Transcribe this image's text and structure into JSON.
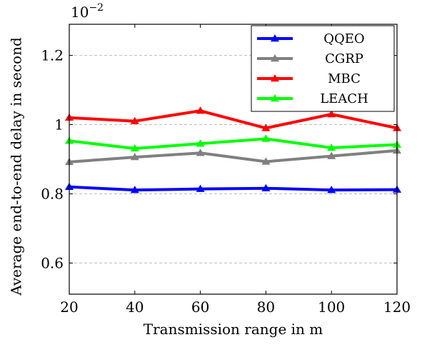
{
  "chart_data": {
    "type": "line",
    "xlabel": "Transmission range in m",
    "ylabel": "Average end-to-end delay in second",
    "scale_base": "10",
    "scale_exponent": "−2",
    "x": [
      20,
      40,
      60,
      80,
      100,
      120
    ],
    "xlim": [
      20,
      120
    ],
    "ylim": [
      0.51,
      1.29
    ],
    "xticks": [
      "20",
      "40",
      "60",
      "80",
      "100",
      "120"
    ],
    "yticks": [
      {
        "value": 0.6,
        "label": "0.6"
      },
      {
        "value": 0.8,
        "label": "0.8"
      },
      {
        "value": 1.0,
        "label": "1"
      },
      {
        "value": 1.2,
        "label": "1.2"
      }
    ],
    "grid": "horizontal dashed",
    "legend_position": "top-right",
    "series": [
      {
        "name": "QQEO",
        "color": "#0000ff",
        "values": [
          0.82,
          0.811,
          0.814,
          0.816,
          0.811,
          0.812
        ]
      },
      {
        "name": "CGRP",
        "color": "#808080",
        "values": [
          0.892,
          0.906,
          0.918,
          0.893,
          0.909,
          0.925
        ]
      },
      {
        "name": "MBC",
        "color": "#ff0000",
        "values": [
          1.02,
          1.01,
          1.04,
          0.99,
          1.03,
          0.99
        ]
      },
      {
        "name": "LEACH",
        "color": "#00ff00",
        "values": [
          0.953,
          0.931,
          0.945,
          0.959,
          0.933,
          0.942
        ]
      }
    ]
  }
}
